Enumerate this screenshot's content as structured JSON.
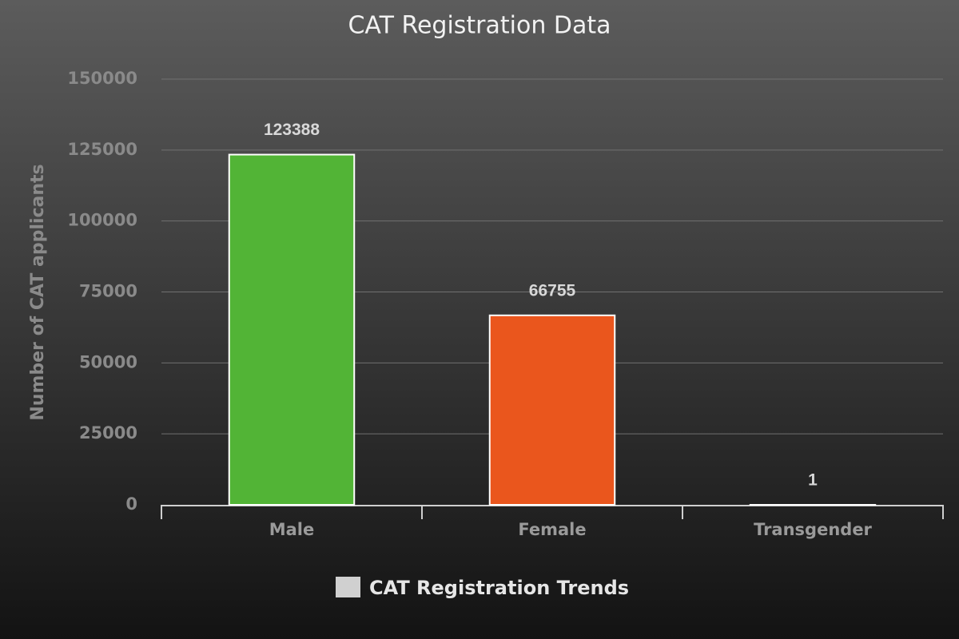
{
  "chart_data": {
    "type": "bar",
    "title": "CAT Registration Data",
    "y_label": "Number of CAT applicants",
    "categories": [
      "Male",
      "Female",
      "Transgender"
    ],
    "series": [
      {
        "name": "CAT Registration Trends",
        "color": "#d0d0d0",
        "colors": [
          "#52b436",
          "#ea561d",
          "#0e0fa0"
        ],
        "values": [
          123388,
          66755,
          1
        ]
      }
    ],
    "ylim": [
      0,
      150000
    ],
    "yticks": [
      0,
      25000,
      50000,
      75000,
      100000,
      125000,
      150000
    ],
    "grid": true,
    "legend": "bottom"
  }
}
